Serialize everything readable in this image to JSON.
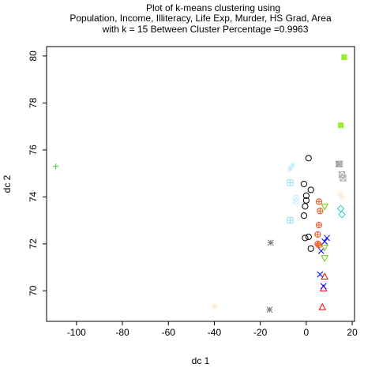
{
  "chart_data": {
    "type": "scatter",
    "title_lines": [
      "Plot of k-means clustering using",
      "Population, Income, Illiteracy, Life Exp, Murder, HS Grad, Area",
      "with  k = 15 Between Cluster Percentage =0.9963"
    ],
    "xlabel": "dc 1",
    "ylabel": "dc 2",
    "xlim": [
      -113,
      21
    ],
    "ylim": [
      68.7,
      80.4
    ],
    "x_ticks": [
      -100,
      -80,
      -60,
      -40,
      -20,
      0,
      20
    ],
    "x_tick_labels": [
      "-100",
      "-80",
      "-60",
      "-40",
      "-20",
      "0",
      "20"
    ],
    "y_ticks": [
      70,
      72,
      74,
      76,
      78,
      80
    ],
    "y_tick_labels": [
      "70",
      "72",
      "74",
      "76",
      "78",
      "80"
    ],
    "grid": false,
    "legend": "none",
    "series": [
      {
        "symbol": "circle",
        "color": "#000000",
        "points": [
          [
            1,
            75.65
          ],
          [
            -1,
            74.55
          ],
          [
            0,
            74.05
          ],
          [
            2,
            74.3
          ],
          [
            0,
            73.85
          ],
          [
            -0.5,
            73.6
          ],
          [
            -1,
            73.2
          ],
          [
            -0.5,
            72.25
          ],
          [
            1,
            72.3
          ],
          [
            2,
            71.8
          ]
        ]
      },
      {
        "symbol": "triangle",
        "color": "#ff0000",
        "points": [
          [
            8,
            70.6
          ],
          [
            7.5,
            70.1
          ],
          [
            7,
            69.3
          ]
        ]
      },
      {
        "symbol": "plus",
        "color": "#33cc33",
        "points": [
          [
            -109,
            75.3
          ]
        ]
      },
      {
        "symbol": "x",
        "color": "#0000ff",
        "points": [
          [
            6,
            70.7
          ],
          [
            7.5,
            70.2
          ],
          [
            6.5,
            71.7
          ],
          [
            8,
            72.1
          ],
          [
            9,
            72.25
          ]
        ]
      },
      {
        "symbol": "diamond",
        "color": "#33cccc",
        "points": [
          [
            15,
            73.5
          ],
          [
            15.5,
            73.25
          ]
        ]
      },
      {
        "symbol": "triangle-down",
        "color": "#66cc00",
        "points": [
          [
            8,
            73.6
          ],
          [
            8,
            71.85
          ],
          [
            8,
            71.4
          ]
        ]
      },
      {
        "symbol": "boxed-x",
        "color": "#aaaaaa",
        "points": [
          [
            14.5,
            75.4
          ],
          [
            15.5,
            74.95
          ],
          [
            16,
            74.8
          ]
        ]
      },
      {
        "symbol": "asterisk",
        "color": "#777777",
        "points": [
          [
            -15.5,
            72.05
          ],
          [
            -16,
            69.2
          ],
          [
            14,
            75.4
          ]
        ]
      },
      {
        "symbol": "diamond-plus",
        "color": "#bbbbbb",
        "points": [
          [
            14.5,
            75.4
          ]
        ]
      },
      {
        "symbol": "circle-plus",
        "color": "#ee5522",
        "points": [
          [
            5.5,
            73.8
          ],
          [
            6,
            73.4
          ],
          [
            5.5,
            72.8
          ],
          [
            5,
            72.4
          ],
          [
            5,
            72.0
          ],
          [
            5.5,
            71.95
          ]
        ]
      },
      {
        "symbol": "star",
        "color": "#bbeeff",
        "points": [
          [
            -7,
            75.2
          ],
          [
            -6,
            75.35
          ]
        ]
      },
      {
        "symbol": "circle-cross",
        "color": "#cceeff",
        "points": [
          [
            -4.5,
            73.95
          ],
          [
            -4.5,
            73.8
          ]
        ]
      },
      {
        "symbol": "square-plus",
        "color": "#99ddff",
        "points": [
          [
            -7,
            74.6
          ],
          [
            -7,
            73.0
          ]
        ]
      },
      {
        "symbol": "filled-square",
        "color": "#99ee33",
        "points": [
          [
            16.5,
            79.95
          ],
          [
            15,
            77.05
          ]
        ]
      },
      {
        "symbol": "filled-circle",
        "color": "#ffeedd",
        "points": [
          [
            -40,
            69.35
          ],
          [
            15,
            74.1
          ],
          [
            15.5,
            74.0
          ]
        ]
      }
    ]
  }
}
